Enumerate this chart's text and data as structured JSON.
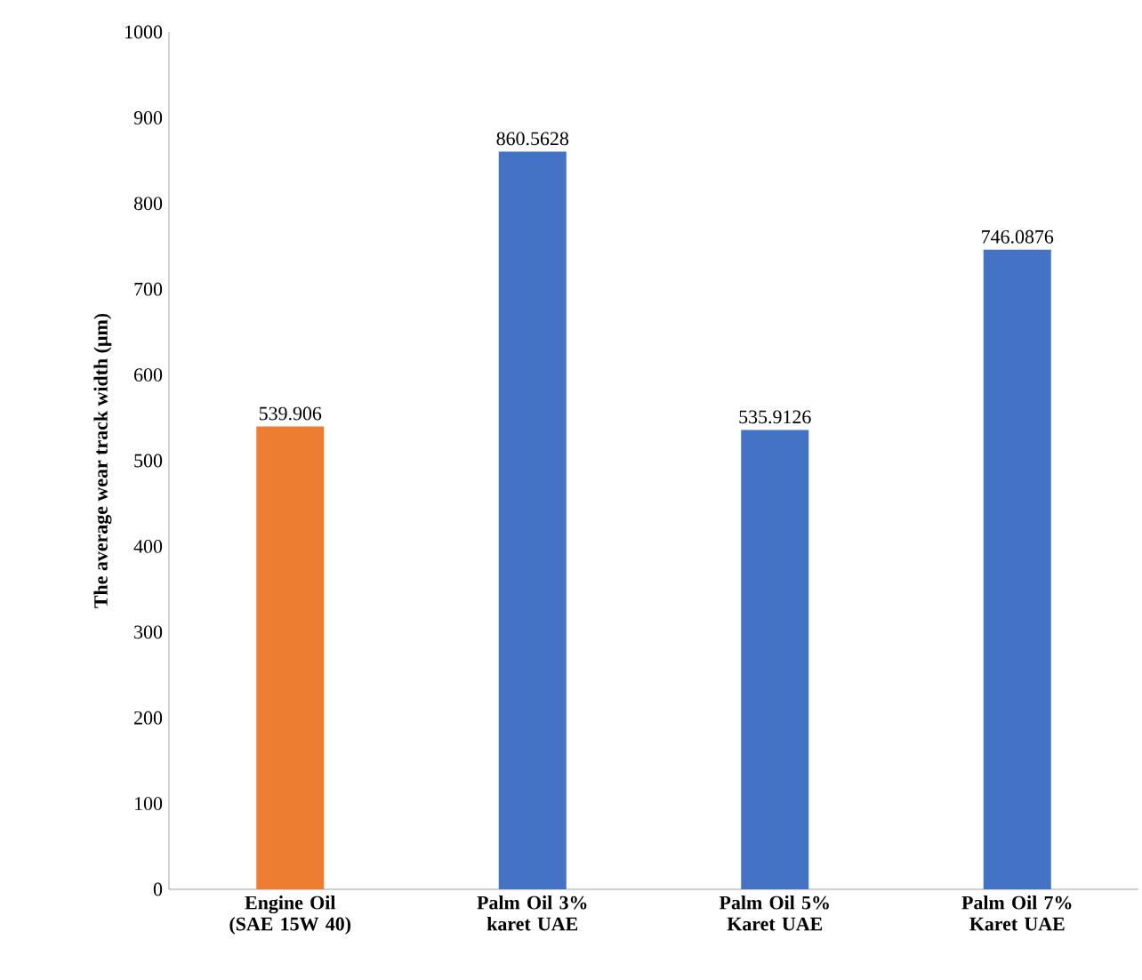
{
  "chart_data": {
    "type": "bar",
    "ylabel": "The average wear track width  (µm)",
    "categories": [
      "Engine Oil (SAE 15W 40)",
      "Palm Oil 3% karet UAE",
      "Palm Oil 5% Karet UAE",
      "Palm Oil 7% Karet UAE"
    ],
    "values": [
      539.906,
      860.5628,
      535.9126,
      746.0876
    ],
    "value_labels": [
      "539.906",
      "860.5628",
      "535.9126",
      "746.0876"
    ],
    "colors": [
      "#ed7d31",
      "#4472c4",
      "#4472c4",
      "#4472c4"
    ],
    "ylim": [
      0,
      1000
    ],
    "yticks": [
      0,
      100,
      200,
      300,
      400,
      500,
      600,
      700,
      800,
      900,
      1000
    ],
    "grid": false
  }
}
